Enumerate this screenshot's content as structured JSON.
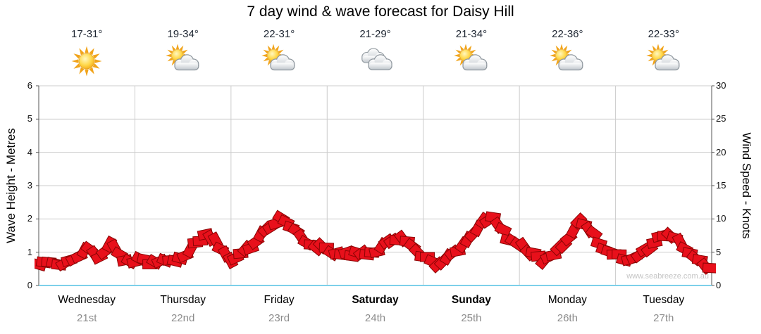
{
  "title": "7 day wind & wave forecast for Daisy Hill",
  "watermark": "www.seabreeze.com.au",
  "axes": {
    "left_label": "Wave Height - Metres",
    "right_label": "Wind Speed - Knots",
    "left_ticks": [
      0,
      1,
      2,
      3,
      4,
      5,
      6
    ],
    "right_ticks": [
      0,
      5,
      10,
      15,
      20,
      25,
      30
    ],
    "left_range": [
      0,
      6
    ],
    "right_range": [
      0,
      30
    ]
  },
  "days": [
    {
      "name": "Wednesday",
      "date": "21st",
      "temp": "17-31°",
      "icon": "sunny",
      "bold": false
    },
    {
      "name": "Thursday",
      "date": "22nd",
      "temp": "19-34°",
      "icon": "partly",
      "bold": false
    },
    {
      "name": "Friday",
      "date": "23rd",
      "temp": "22-31°",
      "icon": "partly",
      "bold": false
    },
    {
      "name": "Saturday",
      "date": "24th",
      "temp": "21-29°",
      "icon": "cloudy",
      "bold": true
    },
    {
      "name": "Sunday",
      "date": "25th",
      "temp": "21-34°",
      "icon": "partly",
      "bold": true
    },
    {
      "name": "Monday",
      "date": "26th",
      "temp": "22-36°",
      "icon": "partly",
      "bold": false
    },
    {
      "name": "Tuesday",
      "date": "27th",
      "temp": "22-33°",
      "icon": "partly",
      "bold": false
    }
  ],
  "colors": {
    "ribbon_fill": "#e8101b",
    "ribbon_stroke": "#8a0404",
    "grid": "#cccccc",
    "axis": "#555555",
    "bottom_axis": "#7dd0ea",
    "date_text": "#8c8c8c",
    "watermark_text": "#c4c4c4"
  },
  "chart_data": {
    "type": "line",
    "title": "7 day wind & wave forecast for Daisy Hill",
    "x_description": "3-hourly samples across 7 days, Wednesday 21st to Tuesday 27th",
    "samples_per_day": 8,
    "categories": [
      "Wednesday 21st",
      "Thursday 22nd",
      "Friday 23rd",
      "Saturday 24th",
      "Sunday 25th",
      "Monday 26th",
      "Tuesday 27th"
    ],
    "series": [
      {
        "name": "Wind Speed",
        "unit": "knots",
        "values": [
          3.3,
          3.5,
          3.0,
          4.0,
          6.0,
          4.5,
          6.5,
          4.0,
          3.8,
          3.5,
          3.3,
          3.5,
          3.8,
          6.5,
          7.5,
          6.0,
          3.5,
          5.0,
          6.5,
          8.5,
          10.0,
          9.0,
          7.0,
          6.0,
          5.3,
          4.8,
          4.5,
          4.8,
          5.0,
          6.5,
          7.3,
          6.0,
          4.3,
          3.3,
          4.0,
          5.5,
          7.5,
          9.5,
          10.0,
          7.0,
          6.0,
          4.8,
          4.0,
          5.0,
          7.0,
          9.8,
          8.0,
          5.5,
          4.5,
          4.0,
          4.8,
          6.0,
          7.8,
          7.0,
          5.0,
          3.5,
          2.5
        ]
      }
    ],
    "left_axis": {
      "label": "Wave Height - Metres",
      "range": [
        0,
        6
      ]
    },
    "right_axis": {
      "label": "Wind Speed - Knots",
      "range": [
        0,
        30
      ]
    },
    "grid": "on",
    "legend": "none",
    "style": "jagged red wind ribbon of rotated flag rectangles; wave axis aligned so 1 metre = 5 knots"
  }
}
